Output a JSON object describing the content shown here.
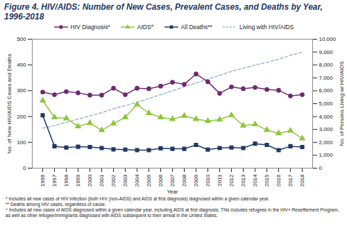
{
  "chart_data": {
    "type": "line",
    "title": "Figure 4. HIV/AIDS: Number of New Cases, Prevalent Cases, and Deaths by Year, 1996-2018",
    "x_label": "Year",
    "y_label": "No. of New HIV/AIDS Cases and Deaths",
    "y2_label": "No. of Persons Living w/ HIV/AIDS",
    "categories": [
      "1996",
      "1997",
      "1998",
      "1999",
      "2000",
      "2001",
      "2002",
      "2003",
      "2004",
      "2005",
      "2006",
      "2007",
      "2008",
      "2009",
      "2010",
      "2011",
      "2012",
      "2013",
      "2014",
      "2015",
      "2016",
      "2017",
      "2018"
    ],
    "ylim": [
      0,
      500
    ],
    "yticks": [
      0,
      100,
      200,
      300,
      400,
      500
    ],
    "y2lim": [
      0,
      10000
    ],
    "y2ticks": [
      0,
      {
        "value": 1000,
        "label": "1,000"
      },
      {
        "value": 2000,
        "label": "2,000"
      },
      {
        "value": 3000,
        "label": "3,000"
      },
      {
        "value": 4000,
        "label": "4,000"
      },
      {
        "value": 5000,
        "label": "5,000"
      },
      {
        "value": 6000,
        "label": "6,000"
      },
      {
        "value": 7000,
        "label": "7,000"
      },
      {
        "value": 8000,
        "label": "8,000"
      },
      {
        "value": 9000,
        "label": "9,000"
      },
      {
        "value": 10000,
        "label": "10,000"
      }
    ],
    "grid": false,
    "legend": "top",
    "series": [
      {
        "name": "HIV Diagnosis*",
        "color": "#6f2a6e",
        "marker": "circle",
        "line_style": "solid",
        "values": [
          295,
          285,
          297,
          292,
          283,
          283,
          310,
          285,
          310,
          308,
          318,
          333,
          325,
          365,
          335,
          290,
          315,
          308,
          313,
          305,
          302,
          280,
          285
        ]
      },
      {
        "name": "AIDS^",
        "color": "#8dc63f",
        "marker": "triangle",
        "line_style": "solid",
        "values": [
          262,
          197,
          193,
          162,
          175,
          147,
          173,
          197,
          247,
          213,
          197,
          190,
          203,
          190,
          183,
          188,
          205,
          165,
          170,
          148,
          135,
          145,
          115
        ]
      },
      {
        "name": "All Deaths**",
        "color": "#1f3864",
        "marker": "square",
        "line_style": "solid",
        "values": [
          205,
          85,
          80,
          83,
          82,
          78,
          73,
          72,
          70,
          70,
          77,
          75,
          75,
          90,
          72,
          78,
          80,
          78,
          95,
          90,
          70,
          85,
          82
        ]
      },
      {
        "name": "Living with HIV/AIDS",
        "color": "#9bb7d4",
        "marker": "none",
        "line_style": "dashed",
        "axis": "y2",
        "values": [
          3100,
          3300,
          3550,
          3800,
          4050,
          4300,
          4600,
          4850,
          5100,
          5400,
          5700,
          6000,
          6300,
          6600,
          6900,
          7200,
          7500,
          7750,
          8000,
          8200,
          8450,
          8750,
          9000
        ]
      }
    ],
    "footnotes": [
      "* Includes all new cases of HIV infection (both HIV (non-AIDS) and AIDS at first diagnosis) diagnosed within a given calendar year.",
      "** Deaths among HIV cases, regardless of cause.",
      "^ Includes all new cases of AIDS diagnosed within a given calendar year, including AIDS at first diagnosis. This includes refugees in the HIV+ Resettlement Program, as well as other refugee/immigrants diagnosed with AIDS subsequent to their arrival in the United States."
    ]
  }
}
